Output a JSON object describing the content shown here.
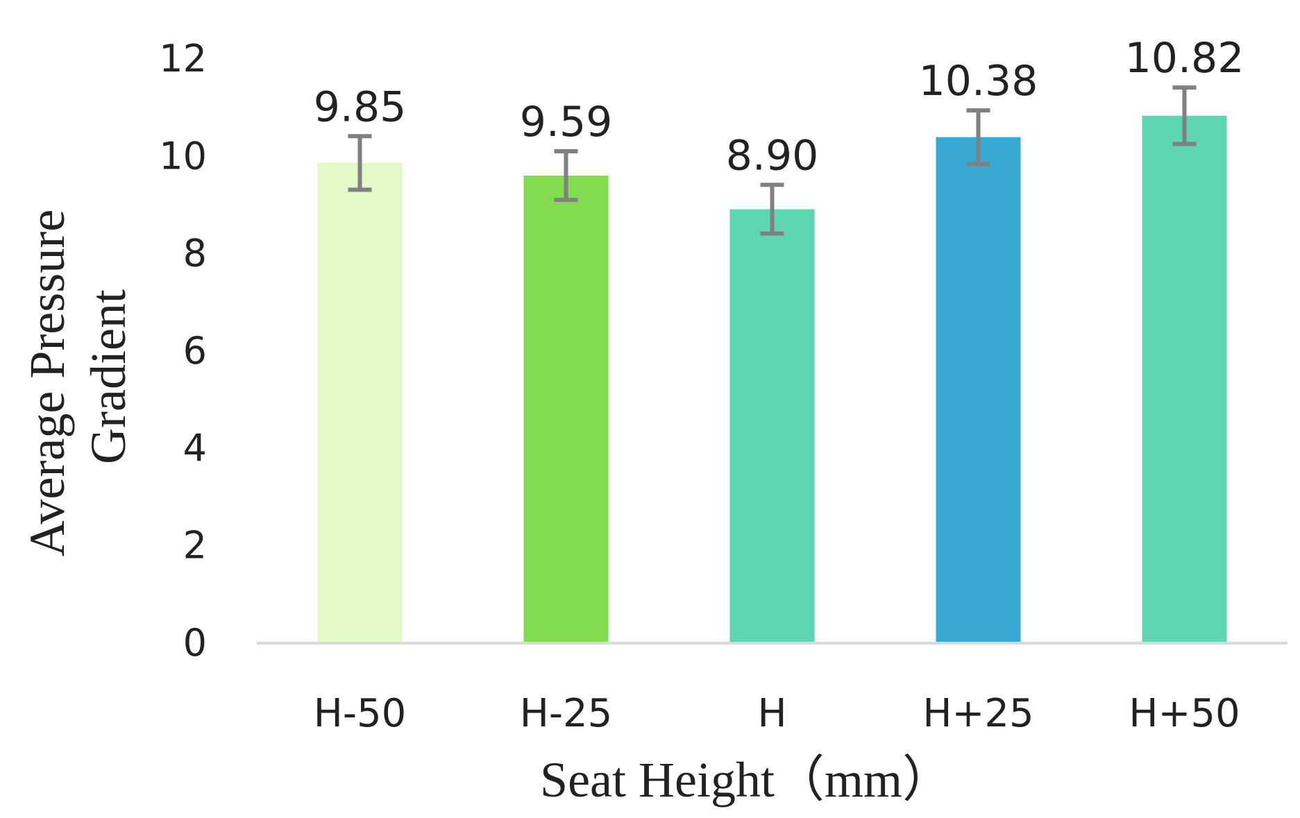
{
  "chart_data": {
    "type": "bar",
    "categories": [
      "H-50",
      "H-25",
      "H",
      "H+25",
      "H+50"
    ],
    "values": [
      9.85,
      9.59,
      8.9,
      10.38,
      10.82
    ],
    "error": [
      0.55,
      0.5,
      0.5,
      0.55,
      0.58
    ],
    "data_labels": [
      "9.85",
      "9.59",
      "8.90",
      "10.38",
      "10.82"
    ],
    "bar_colors": [
      "#e4f9c8",
      "#83dc4f",
      "#5ed6b2",
      "#37a9d3",
      "#5ed6b2"
    ],
    "error_bar_color": "#808080",
    "axis_line_color": "#d9d9d9",
    "xlabel": "Seat Height（mm）",
    "ylabel_lines": [
      "Average Pressure",
      "Gradient"
    ],
    "ylim": [
      0,
      12
    ],
    "yticks": [
      0,
      2,
      4,
      6,
      8,
      10,
      12
    ],
    "ytick_labels": [
      "0",
      "2",
      "4",
      "6",
      "8",
      "10",
      "12"
    ],
    "grid": false,
    "legend": "none"
  }
}
